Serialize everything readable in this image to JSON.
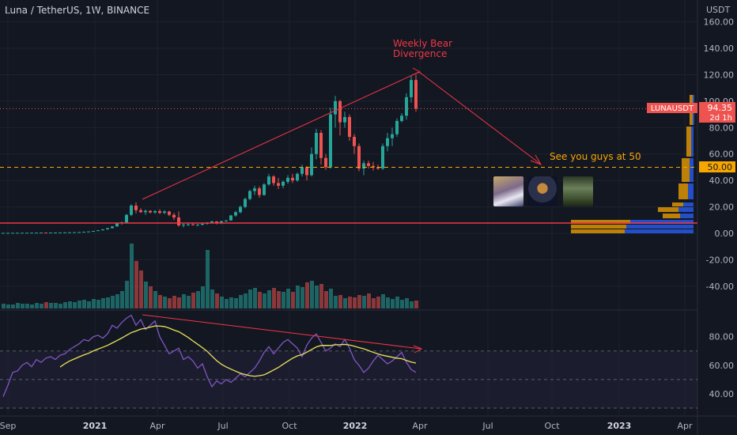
{
  "header": {
    "symbol": "Luna / TetherUS, 1W, BINANCE"
  },
  "price_axis": {
    "unit": "USDT",
    "labels": [
      "160.00",
      "140.00",
      "120.00",
      "100.00",
      "80.00",
      "60.00",
      "40.00",
      "20.00",
      "0.00",
      "-20.00",
      "-40.00"
    ],
    "values": [
      160,
      140,
      120,
      100,
      80,
      60,
      40,
      20,
      0,
      -20,
      -40
    ],
    "ticker_label": "LUNAUSDT",
    "last_price": "94.35",
    "countdown": "2d 1h",
    "level_label": "50.00",
    "last_price_value": 94.35,
    "level_value": 50
  },
  "rsi_axis": {
    "labels": [
      "80.00",
      "60.00",
      "40.00"
    ],
    "values": [
      80,
      60,
      40
    ],
    "upper_band": 70,
    "lower_band": 30
  },
  "time_axis": {
    "labels": [
      "Sep",
      "2021",
      "Apr",
      "Jul",
      "Oct",
      "2022",
      "Apr",
      "Jul",
      "Oct",
      "2023",
      "Apr"
    ],
    "bold": [
      false,
      true,
      false,
      false,
      false,
      true,
      false,
      false,
      false,
      true,
      false
    ]
  },
  "annotations": {
    "divergence_line1": "Weekly Bear",
    "divergence_line2": "Divergence",
    "target_text": "See you guys at 50"
  },
  "colors": {
    "up": "#26a69a",
    "down": "#ef5350",
    "rsi": "#7e57c2",
    "rsi_ma": "#e8e35b",
    "trend": "#f23645",
    "level": "#f7a600",
    "support": "#f23645",
    "vp_up": "#2962ff",
    "vp_down": "#f7a600"
  },
  "chart_data": [
    {
      "type": "candlestick",
      "title": "Luna / TetherUS, 1W, BINANCE",
      "ylabel": "USDT",
      "ylim": [
        -50,
        170
      ],
      "x_start": "2020-09",
      "interval": "1W",
      "ohlc": [
        [
          0.3,
          0.35,
          0.28,
          0.32
        ],
        [
          0.32,
          0.36,
          0.3,
          0.34
        ],
        [
          0.34,
          0.4,
          0.32,
          0.38
        ],
        [
          0.38,
          0.42,
          0.35,
          0.4
        ],
        [
          0.4,
          0.45,
          0.38,
          0.42
        ],
        [
          0.42,
          0.48,
          0.4,
          0.45
        ],
        [
          0.45,
          0.5,
          0.42,
          0.47
        ],
        [
          0.47,
          0.52,
          0.44,
          0.5
        ],
        [
          0.5,
          0.6,
          0.48,
          0.56
        ],
        [
          0.56,
          0.6,
          0.5,
          0.54
        ],
        [
          0.54,
          0.6,
          0.5,
          0.58
        ],
        [
          0.58,
          0.65,
          0.55,
          0.6
        ],
        [
          0.6,
          0.7,
          0.55,
          0.65
        ],
        [
          0.65,
          0.75,
          0.6,
          0.7
        ],
        [
          0.7,
          0.8,
          0.65,
          0.75
        ],
        [
          0.75,
          0.9,
          0.7,
          0.85
        ],
        [
          0.85,
          1.0,
          0.8,
          0.95
        ],
        [
          0.95,
          1.3,
          0.9,
          1.2
        ],
        [
          1.2,
          1.5,
          1.1,
          1.4
        ],
        [
          1.4,
          1.9,
          1.3,
          1.8
        ],
        [
          1.8,
          2.5,
          1.7,
          2.3
        ],
        [
          2.3,
          3.2,
          2.2,
          3.0
        ],
        [
          3.0,
          4.2,
          2.8,
          3.9
        ],
        [
          3.9,
          5.5,
          3.7,
          5.2
        ],
        [
          5.2,
          7.8,
          5.0,
          7.5
        ],
        [
          7.5,
          9.0,
          6.5,
          8.2
        ],
        [
          8.2,
          14.5,
          8.0,
          14.0
        ],
        [
          14.0,
          22.0,
          13.0,
          21.0
        ],
        [
          21.0,
          23.5,
          15.0,
          17.5
        ],
        [
          17.5,
          19.0,
          15.5,
          16.0
        ],
        [
          16.0,
          18.0,
          14.0,
          17.0
        ],
        [
          17.0,
          17.5,
          15.0,
          15.8
        ],
        [
          15.8,
          17.5,
          14.8,
          16.8
        ],
        [
          16.8,
          18.2,
          14.5,
          15.5
        ],
        [
          15.5,
          17.5,
          14.5,
          16.5
        ],
        [
          16.5,
          17.0,
          13.0,
          14.0
        ],
        [
          14.0,
          15.5,
          10.0,
          12.0
        ],
        [
          12.0,
          16.5,
          5.0,
          6.0
        ],
        [
          6.0,
          8.0,
          4.5,
          6.5
        ],
        [
          6.5,
          7.5,
          5.5,
          6.8
        ],
        [
          6.8,
          7.5,
          5.8,
          6.2
        ],
        [
          6.2,
          7.0,
          5.5,
          6.5
        ],
        [
          6.5,
          7.8,
          6.0,
          7.2
        ],
        [
          7.2,
          8.5,
          6.5,
          8.0
        ],
        [
          8.0,
          9.5,
          7.5,
          9.0
        ],
        [
          9.0,
          9.2,
          6.8,
          7.5
        ],
        [
          7.5,
          9.5,
          7.0,
          9.2
        ],
        [
          9.2,
          10.0,
          8.5,
          9.8
        ],
        [
          9.8,
          14.0,
          9.5,
          13.5
        ],
        [
          13.5,
          17.0,
          12.5,
          16.0
        ],
        [
          16.0,
          21.0,
          15.0,
          20.0
        ],
        [
          20.0,
          27.0,
          19.0,
          26.0
        ],
        [
          26.0,
          33.0,
          25.0,
          32.0
        ],
        [
          32.0,
          36.0,
          29.0,
          34.0
        ],
        [
          34.0,
          35.5,
          27.0,
          29.0
        ],
        [
          29.0,
          38.0,
          28.5,
          37.0
        ],
        [
          37.0,
          45.0,
          36.0,
          43.0
        ],
        [
          43.0,
          44.0,
          36.0,
          38.0
        ],
        [
          38.0,
          42.0,
          33.5,
          36.0
        ],
        [
          36.0,
          40.0,
          34.0,
          39.0
        ],
        [
          39.0,
          44.0,
          37.5,
          42.0
        ],
        [
          42.0,
          45.0,
          38.0,
          40.0
        ],
        [
          40.0,
          46.0,
          39.0,
          45.0
        ],
        [
          45.0,
          52.0,
          43.0,
          50.0
        ],
        [
          50.0,
          51.0,
          40.0,
          44.0
        ],
        [
          44.0,
          65.0,
          43.0,
          60.0
        ],
        [
          60.0,
          79.0,
          56.0,
          76.0
        ],
        [
          76.0,
          78.0,
          52.0,
          57.0
        ],
        [
          57.0,
          60.0,
          48.0,
          50.0
        ],
        [
          50.0,
          95.0,
          49.0,
          90.0
        ],
        [
          90.0,
          104.0,
          80.0,
          100.0
        ],
        [
          100.0,
          101.0,
          74.0,
          84.0
        ],
        [
          84.0,
          92.0,
          80.0,
          88.0
        ],
        [
          88.0,
          90.0,
          70.0,
          73.0
        ],
        [
          73.0,
          75.0,
          60.0,
          66.0
        ],
        [
          66.0,
          68.0,
          47.0,
          49.0
        ],
        [
          49.0,
          55.0,
          44.0,
          53.0
        ],
        [
          53.0,
          55.0,
          49.0,
          51.0
        ],
        [
          51.0,
          54.0,
          47.5,
          50.0
        ],
        [
          50.0,
          52.0,
          48.0,
          49.0
        ],
        [
          49.0,
          68.0,
          48.0,
          66.0
        ],
        [
          66.0,
          76.0,
          62.0,
          72.0
        ],
        [
          72.0,
          80.0,
          66.0,
          75.0
        ],
        [
          75.0,
          87.0,
          73.0,
          85.0
        ],
        [
          85.0,
          91.0,
          84.0,
          89.0
        ],
        [
          89.0,
          106.0,
          86.0,
          103.0
        ],
        [
          103.0,
          119.0,
          99.0,
          116.0
        ],
        [
          116.0,
          120.0,
          92.0,
          94.35
        ]
      ]
    },
    {
      "type": "bar",
      "title": "Volume",
      "values": [
        6,
        5,
        5,
        7,
        6,
        6,
        5,
        7,
        6,
        8,
        7,
        7,
        6,
        8,
        9,
        8,
        10,
        11,
        9,
        12,
        11,
        13,
        14,
        16,
        18,
        22,
        35,
        82,
        60,
        48,
        34,
        28,
        22,
        17,
        15,
        13,
        16,
        14,
        18,
        16,
        20,
        22,
        28,
        74,
        24,
        19,
        15,
        12,
        14,
        13,
        17,
        19,
        24,
        26,
        21,
        19,
        23,
        26,
        22,
        21,
        25,
        21,
        29,
        27,
        33,
        35,
        29,
        31,
        22,
        25,
        16,
        17,
        13,
        15,
        14,
        17,
        16,
        19,
        13,
        15,
        18,
        14,
        12,
        15,
        11,
        13,
        9,
        10
      ]
    },
    {
      "type": "line",
      "title": "RSI",
      "ylim": [
        20,
        95
      ],
      "series": [
        {
          "name": "RSI",
          "values": [
            38,
            46,
            55,
            56,
            60,
            62,
            59,
            64,
            62,
            65,
            66,
            64,
            67,
            68,
            71,
            73,
            75,
            78,
            77,
            80,
            81,
            79,
            82,
            88,
            86,
            90,
            93,
            95,
            88,
            92,
            85,
            88,
            91,
            80,
            74,
            68,
            70,
            72,
            64,
            66,
            63,
            58,
            61,
            52,
            45,
            49,
            47,
            50,
            48,
            51,
            54,
            52,
            55,
            58,
            63,
            69,
            73,
            68,
            72,
            76,
            78,
            75,
            72,
            66,
            74,
            79,
            82,
            76,
            70,
            72,
            75,
            73,
            78,
            72,
            64,
            60,
            55,
            58,
            63,
            67,
            64,
            61,
            63,
            66,
            69,
            62,
            57,
            55
          ]
        },
        {
          "name": "RSI MA",
          "values": [
            null,
            null,
            null,
            null,
            null,
            null,
            null,
            null,
            null,
            null,
            null,
            null,
            null,
            null,
            null,
            null,
            null,
            null,
            null,
            null,
            null,
            null,
            null,
            null,
            null,
            null,
            null,
            null,
            null,
            null,
            null,
            null,
            null,
            null,
            null,
            null,
            null,
            null,
            null,
            null,
            null,
            null,
            null,
            null,
            null,
            null,
            null,
            null,
            null,
            null,
            null,
            null,
            null,
            null,
            null,
            null,
            null,
            null,
            null,
            null,
            null,
            null,
            null,
            null,
            null,
            null,
            null,
            null,
            null,
            null,
            null,
            null,
            null,
            null,
            null,
            null,
            null,
            null,
            null,
            null,
            null,
            null,
            null,
            null,
            null,
            null,
            null,
            null
          ]
        }
      ]
    }
  ]
}
